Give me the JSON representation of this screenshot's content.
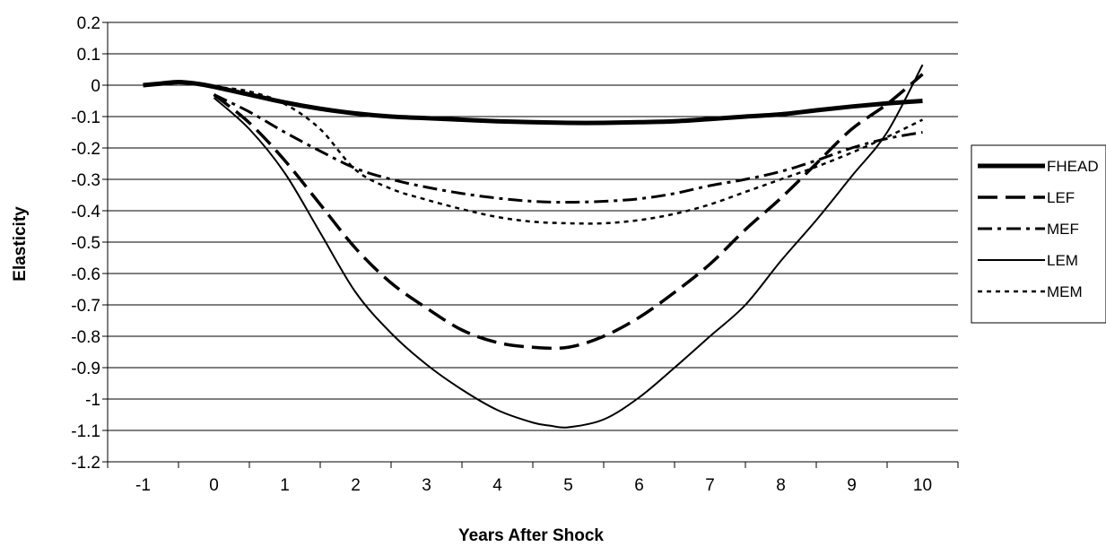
{
  "chart_data": {
    "type": "line",
    "title": "",
    "xlabel": "Years After Shock",
    "ylabel": "Elasticity",
    "xlim": [
      -1.5,
      10.5
    ],
    "ylim": [
      -1.2,
      0.2
    ],
    "x_ticks": [
      "-1",
      "0",
      "1",
      "2",
      "3",
      "4",
      "5",
      "6",
      "7",
      "8",
      "9",
      "10"
    ],
    "y_ticks": [
      "0.2",
      "0.1",
      "0",
      "-0.1",
      "-0.2",
      "-0.3",
      "-0.4",
      "-0.5",
      "-0.6",
      "-0.7",
      "-0.8",
      "-0.9",
      "-1",
      "-1.1",
      "-1.2"
    ],
    "grid": "horizontal",
    "legend_position": "right",
    "series": [
      {
        "name": "FHEAD",
        "style": "thick-solid",
        "x": [
          -1,
          -0.75,
          -0.5,
          -0.25,
          0,
          0.5,
          1,
          1.5,
          2,
          2.5,
          3,
          3.5,
          4,
          4.5,
          5,
          5.5,
          6,
          6.5,
          7,
          7.5,
          8,
          8.5,
          9,
          9.5,
          10
        ],
        "y": [
          0,
          0.005,
          0.01,
          0.005,
          -0.005,
          -0.03,
          -0.055,
          -0.075,
          -0.09,
          -0.1,
          -0.105,
          -0.11,
          -0.115,
          -0.118,
          -0.12,
          -0.12,
          -0.118,
          -0.115,
          -0.108,
          -0.1,
          -0.093,
          -0.08,
          -0.068,
          -0.058,
          -0.05
        ]
      },
      {
        "name": "LEF",
        "style": "long-dash",
        "x": [
          0,
          0.5,
          1,
          1.5,
          2,
          2.5,
          3,
          3.5,
          4,
          4.5,
          5,
          5.5,
          6,
          6.5,
          7,
          7.5,
          8,
          8.5,
          9,
          9.5,
          10
        ],
        "y": [
          -0.03,
          -0.12,
          -0.24,
          -0.38,
          -0.52,
          -0.63,
          -0.71,
          -0.78,
          -0.82,
          -0.835,
          -0.835,
          -0.8,
          -0.74,
          -0.66,
          -0.57,
          -0.46,
          -0.36,
          -0.25,
          -0.14,
          -0.06,
          0.035
        ]
      },
      {
        "name": "MEF",
        "style": "dash-dot",
        "x": [
          0,
          0.5,
          1,
          1.5,
          2,
          2.5,
          3,
          3.5,
          4,
          4.5,
          5,
          5.5,
          6,
          6.5,
          7,
          7.5,
          8,
          8.5,
          9,
          9.5,
          10
        ],
        "y": [
          -0.03,
          -0.085,
          -0.15,
          -0.21,
          -0.265,
          -0.3,
          -0.325,
          -0.345,
          -0.36,
          -0.37,
          -0.373,
          -0.37,
          -0.362,
          -0.345,
          -0.32,
          -0.3,
          -0.275,
          -0.24,
          -0.2,
          -0.17,
          -0.15
        ]
      },
      {
        "name": "LEM",
        "style": "thin-solid",
        "x": [
          0,
          0.5,
          1,
          1.5,
          2,
          2.5,
          3,
          3.5,
          4,
          4.5,
          4.75,
          5,
          5.5,
          6,
          6.5,
          7,
          7.5,
          8,
          8.5,
          9,
          9.5,
          10
        ],
        "y": [
          -0.04,
          -0.14,
          -0.28,
          -0.47,
          -0.66,
          -0.79,
          -0.89,
          -0.97,
          -1.035,
          -1.075,
          -1.085,
          -1.09,
          -1.065,
          -0.995,
          -0.9,
          -0.8,
          -0.7,
          -0.56,
          -0.43,
          -0.29,
          -0.15,
          0.065
        ]
      },
      {
        "name": "MEM",
        "style": "short-dash",
        "x": [
          0,
          0.5,
          1,
          1.5,
          2,
          2.5,
          3,
          3.5,
          4,
          4.5,
          5,
          5.5,
          6,
          6.5,
          7,
          7.5,
          8,
          8.5,
          9,
          9.5,
          10
        ],
        "y": [
          -0.005,
          -0.02,
          -0.06,
          -0.14,
          -0.27,
          -0.33,
          -0.365,
          -0.395,
          -0.42,
          -0.435,
          -0.44,
          -0.44,
          -0.43,
          -0.41,
          -0.38,
          -0.34,
          -0.3,
          -0.26,
          -0.215,
          -0.165,
          -0.11
        ]
      }
    ]
  }
}
